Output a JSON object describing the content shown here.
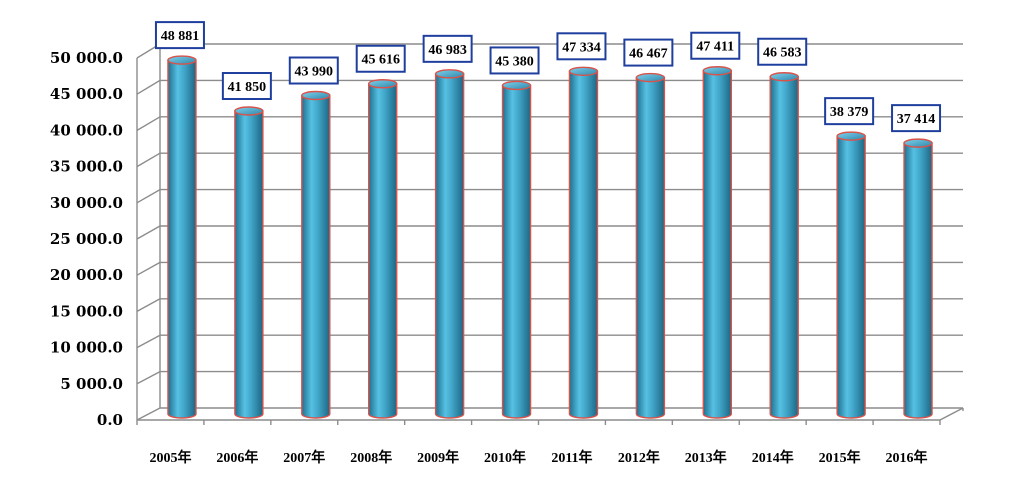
{
  "chart_data": {
    "type": "bar",
    "title": "",
    "xlabel": "",
    "ylabel": "",
    "categories": [
      "2005年",
      "2006年",
      "2007年",
      "2008年",
      "2009年",
      "2010年",
      "2011年",
      "2012年",
      "2013年",
      "2014年",
      "2015年",
      "2016年"
    ],
    "values": [
      48881,
      41850,
      43990,
      45616,
      46983,
      45380,
      47334,
      46467,
      47411,
      46583,
      38379,
      37414
    ],
    "data_labels": [
      "48 881",
      "41 850",
      "43 990",
      "45 616",
      "46 983",
      "45 380",
      "47 334",
      "46 467",
      "47 411",
      "46 583",
      "38 379",
      "37 414"
    ],
    "ylim": [
      0,
      50000
    ],
    "yticks": [
      0,
      5000,
      10000,
      15000,
      20000,
      25000,
      30000,
      35000,
      40000,
      45000,
      50000
    ],
    "ytick_labels": [
      "0.0",
      "5 000.0",
      "10 000.0",
      "15 000.0",
      "20 000.0",
      "25 000.0",
      "30 000.0",
      "35 000.0",
      "40 000.0",
      "45 000.0",
      "50 000.0"
    ],
    "grid": true,
    "bar_style": "3d-cylinder",
    "colors": {
      "bar": "#3fa3c6",
      "bar_outline": "#d9534a",
      "label_border": "#1f3f9e",
      "grid": "#8c8c8c"
    }
  }
}
